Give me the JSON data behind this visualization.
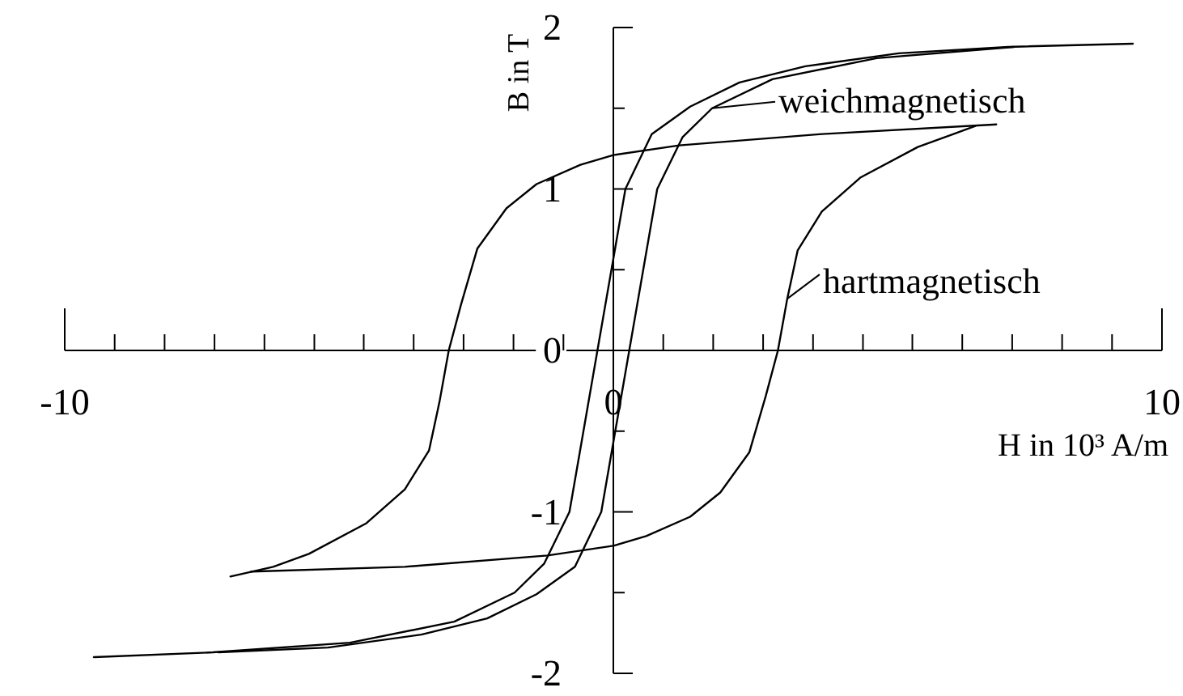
{
  "chart_data": {
    "type": "line",
    "xlabel": "H in 10³ A/m",
    "ylabel": "B in T",
    "marker": "none",
    "line_style": "solid",
    "legend": "top right",
    "xlim": [
      -10,
      10
    ],
    "xticks": [
      -10,
      {
        "value": -9.09,
        "label": null
      },
      {
        "value": -8.18,
        "label": null
      },
      {
        "value": -7.27,
        "label": null
      },
      {
        "value": -6.36,
        "label": null
      },
      {
        "value": -5.45,
        "label": null
      },
      {
        "value": -4.55,
        "label": null
      },
      {
        "value": -3.64,
        "label": null
      },
      {
        "value": -2.73,
        "label": null
      },
      {
        "value": -1.82,
        "label": null
      },
      {
        "value": -0.91,
        "label": null
      },
      0,
      {
        "value": 0.91,
        "label": null
      },
      {
        "value": 1.82,
        "label": null
      },
      {
        "value": 2.73,
        "label": null
      },
      {
        "value": 3.64,
        "label": null
      },
      {
        "value": 4.55,
        "label": null
      },
      {
        "value": 5.45,
        "label": null
      },
      {
        "value": 6.36,
        "label": null
      },
      {
        "value": 7.27,
        "label": null
      },
      {
        "value": 8.18,
        "label": null
      },
      {
        "value": 9.09,
        "label": null
      },
      10
    ],
    "ylim": [
      -2,
      2
    ],
    "yticks": [
      -2,
      {
        "value": -1.5,
        "label": null
      },
      -1,
      {
        "value": -0.5,
        "label": null
      },
      0,
      {
        "value": 0.5,
        "label": null
      },
      1,
      {
        "value": 1.5,
        "label": null
      },
      2
    ],
    "series": [
      {
        "color": "#000000",
        "x": [
          -9.47,
          -7.3,
          -4.8,
          -2.9,
          -1.8,
          -1.26,
          -0.8,
          0.22,
          0.7,
          1.4,
          2.3,
          3.5,
          5.2,
          7.2,
          9.47
        ],
        "values": [
          -1.9,
          -1.87,
          -1.81,
          -1.68,
          -1.5,
          -1.32,
          -1.0,
          1.0,
          1.34,
          1.51,
          1.66,
          1.76,
          1.84,
          1.88,
          1.9
        ]
      },
      {
        "name": "weichmagnetisch",
        "color": "#000000",
        "x": [
          -7.2,
          -5.2,
          -3.5,
          -2.3,
          -1.4,
          -0.7,
          -0.22,
          0.8,
          1.26,
          1.8,
          2.9,
          4.8,
          7.3
        ],
        "values": [
          -1.87,
          -1.84,
          -1.76,
          -1.66,
          -1.51,
          -1.34,
          -1.0,
          1.0,
          1.32,
          1.5,
          1.68,
          1.81,
          1.88
        ]
      },
      {
        "color": "#000000",
        "x": [
          -6.98,
          -6.2,
          -5.55,
          -4.5,
          -3.8,
          -3.36,
          -3.17,
          -3.0,
          -2.78,
          -2.48,
          -1.95,
          -1.4,
          -0.6,
          0,
          1.2,
          3.8,
          6.98
        ],
        "values": [
          -1.4,
          -1.34,
          -1.26,
          -1.07,
          -0.86,
          -0.62,
          -0.32,
          0,
          0.28,
          0.63,
          0.88,
          1.03,
          1.15,
          1.21,
          1.27,
          1.34,
          1.4
        ]
      },
      {
        "name": "hartmagnetisch",
        "color": "#000000",
        "x": [
          -6.6,
          -3.8,
          -1.2,
          0,
          0.6,
          1.4,
          1.95,
          2.48,
          2.78,
          3.0,
          3.17,
          3.36,
          3.8,
          4.5,
          5.55,
          6.2,
          6.6
        ],
        "values": [
          -1.37,
          -1.34,
          -1.27,
          -1.21,
          -1.15,
          -1.03,
          -0.88,
          -0.63,
          -0.28,
          0,
          0.32,
          0.62,
          0.86,
          1.07,
          1.26,
          1.34,
          1.39
        ]
      }
    ]
  }
}
